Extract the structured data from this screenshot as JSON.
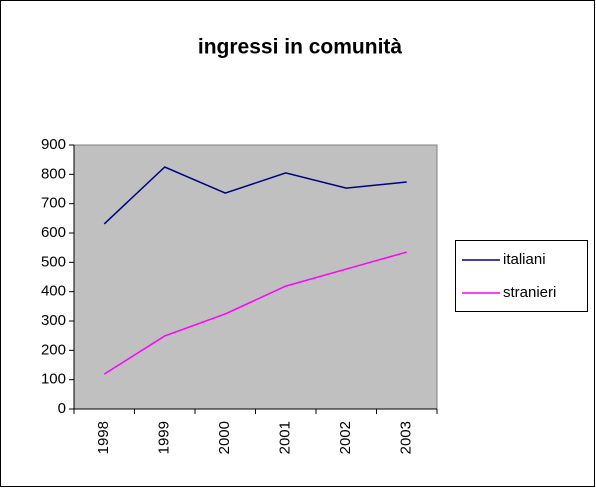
{
  "chart_data": {
    "type": "line",
    "title": "ingressi in comunità",
    "categories": [
      "1998",
      "1999",
      "2000",
      "2001",
      "2002",
      "2003"
    ],
    "series": [
      {
        "name": "italiani",
        "color": "#000080",
        "values": [
          631,
          825,
          736,
          805,
          753,
          774
        ]
      },
      {
        "name": "stranieri",
        "color": "#ff00ff",
        "values": [
          119,
          249,
          324,
          419,
          477,
          535
        ]
      }
    ],
    "ylim": [
      0,
      900
    ],
    "yticks": [
      0,
      100,
      200,
      300,
      400,
      500,
      600,
      700,
      800,
      900
    ],
    "grid": false,
    "legend": "right"
  }
}
